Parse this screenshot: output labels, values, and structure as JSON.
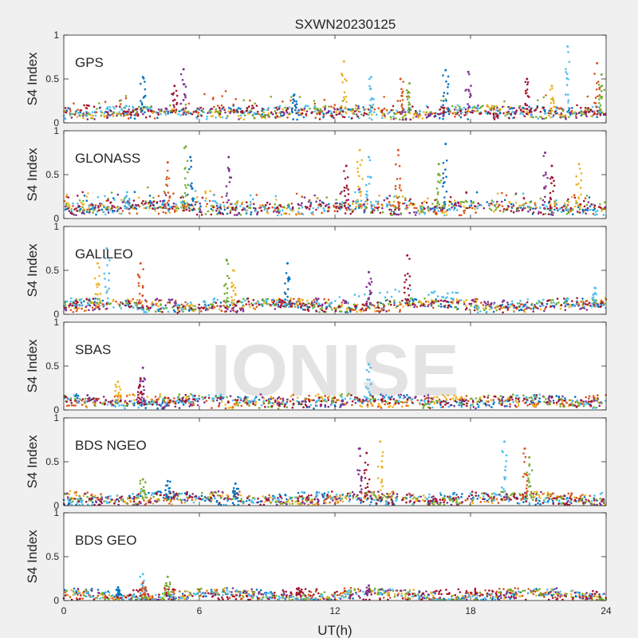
{
  "figure": {
    "title": "SXWN20230125",
    "xlabel": "UT(h)",
    "ylabel": "S4 Index",
    "watermark": "IONISE",
    "background": "#f0f0f0",
    "axes_background": "#ffffff",
    "series_colors": [
      "#0072bd",
      "#d95319",
      "#edb120",
      "#7e2f8e",
      "#77ac30",
      "#4dbeee",
      "#a2142f"
    ]
  },
  "chart_data": [
    {
      "type": "scatter",
      "panel": "GPS",
      "xlim": [
        0,
        24
      ],
      "ylim": [
        0,
        1
      ],
      "xticks": [
        0,
        6,
        12,
        18,
        24
      ],
      "yticks": [
        0,
        0.5,
        1
      ],
      "ytick_labels": [
        "0",
        "0.5",
        "1"
      ],
      "grid": false,
      "baseline": 0.12,
      "spikes": [
        [
          3.5,
          0.52
        ],
        [
          5.3,
          0.61
        ],
        [
          4.9,
          0.42
        ],
        [
          12.4,
          0.7
        ],
        [
          13.6,
          0.52
        ],
        [
          14.9,
          0.5
        ],
        [
          15.3,
          0.45
        ],
        [
          16.9,
          0.6
        ],
        [
          17.9,
          0.58
        ],
        [
          20.5,
          0.5
        ],
        [
          21.6,
          0.42
        ],
        [
          22.3,
          0.87
        ],
        [
          23.6,
          0.68
        ],
        [
          23.8,
          0.55
        ],
        [
          10.2,
          0.32
        ]
      ]
    },
    {
      "type": "scatter",
      "panel": "GLONASS",
      "xlim": [
        0,
        24
      ],
      "ylim": [
        0,
        1
      ],
      "xticks": [
        0,
        6,
        12,
        18,
        24
      ],
      "yticks": [
        0,
        0.5,
        1
      ],
      "ytick_labels": [
        "0",
        "0.5",
        "1"
      ],
      "grid": false,
      "baseline": 0.12,
      "spikes": [
        [
          4.6,
          0.64
        ],
        [
          5.4,
          0.82
        ],
        [
          5.6,
          0.7
        ],
        [
          7.3,
          0.7
        ],
        [
          12.5,
          0.6
        ],
        [
          13.1,
          0.78
        ],
        [
          13.5,
          0.7
        ],
        [
          14.8,
          0.78
        ],
        [
          16.6,
          0.62
        ],
        [
          16.9,
          0.85
        ],
        [
          21.3,
          0.75
        ],
        [
          21.6,
          0.6
        ],
        [
          22.8,
          0.62
        ],
        [
          2.8,
          0.3
        ]
      ]
    },
    {
      "type": "scatter",
      "panel": "GALILEO",
      "xlim": [
        0,
        24
      ],
      "ylim": [
        0,
        1
      ],
      "xticks": [
        0,
        6,
        12,
        18,
        24
      ],
      "yticks": [
        0,
        0.5,
        1
      ],
      "ytick_labels": [
        "0",
        "0.5",
        "1"
      ],
      "grid": false,
      "baseline": 0.1,
      "spikes": [
        [
          1.5,
          0.58
        ],
        [
          1.9,
          0.75
        ],
        [
          3.4,
          0.58
        ],
        [
          7.2,
          0.62
        ],
        [
          9.9,
          0.58
        ],
        [
          13.5,
          0.48
        ],
        [
          15.2,
          0.67
        ],
        [
          7.5,
          0.5
        ],
        [
          23.5,
          0.3
        ]
      ]
    },
    {
      "type": "scatter",
      "panel": "SBAS",
      "xlim": [
        0,
        24
      ],
      "ylim": [
        0,
        1
      ],
      "xticks": [
        0,
        6,
        12,
        18,
        24
      ],
      "yticks": [
        0,
        0.5,
        1
      ],
      "ytick_labels": [
        "0",
        "0.5",
        "1"
      ],
      "grid": false,
      "baseline": 0.1,
      "spikes": [
        [
          3.5,
          0.48
        ],
        [
          3.4,
          0.35
        ],
        [
          2.4,
          0.32
        ],
        [
          13.5,
          0.52
        ]
      ]
    },
    {
      "type": "scatter",
      "panel": "BDS NGEO",
      "xlim": [
        0,
        24
      ],
      "ylim": [
        0,
        1
      ],
      "xticks": [
        0,
        6,
        12,
        18,
        24
      ],
      "yticks": [
        0,
        0.5,
        1
      ],
      "ytick_labels": [
        "0",
        "0.5",
        "1"
      ],
      "grid": false,
      "baseline": 0.08,
      "spikes": [
        [
          3.5,
          0.3
        ],
        [
          4.6,
          0.28
        ],
        [
          13.1,
          0.65
        ],
        [
          13.4,
          0.6
        ],
        [
          14.0,
          0.73
        ],
        [
          19.5,
          0.73
        ],
        [
          20.4,
          0.65
        ],
        [
          20.6,
          0.55
        ],
        [
          7.6,
          0.25
        ]
      ]
    },
    {
      "type": "scatter",
      "panel": "BDS GEO",
      "xlim": [
        0,
        24
      ],
      "ylim": [
        0,
        1
      ],
      "xticks": [
        0,
        6,
        12,
        18,
        24
      ],
      "yticks": [
        0,
        0.5,
        1
      ],
      "ytick_labels": [
        "0",
        "0.5",
        "1"
      ],
      "grid": false,
      "baseline": 0.06,
      "spikes": [
        [
          3.5,
          0.3
        ],
        [
          3.5,
          0.2
        ],
        [
          4.6,
          0.27
        ],
        [
          2.4,
          0.15
        ],
        [
          13.5,
          0.17
        ],
        [
          10.4,
          0.14
        ]
      ]
    }
  ]
}
